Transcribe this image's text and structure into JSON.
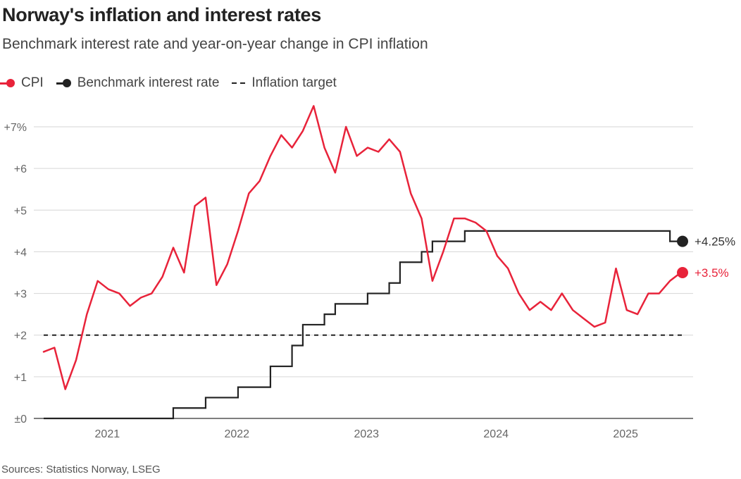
{
  "header": {
    "title": "Norway's inflation and interest rates",
    "subtitle": "Benchmark interest rate and year-on-year change in CPI inflation"
  },
  "legend": [
    {
      "label": "CPI",
      "kind": "dot-line",
      "color": "#e8233a"
    },
    {
      "label": "Benchmark interest rate",
      "kind": "dot-line",
      "color": "#222222"
    },
    {
      "label": "Inflation target",
      "kind": "dashed",
      "color": "#222222"
    }
  ],
  "footer": {
    "source": "Sources: Statistics Norway, LSEG"
  },
  "chart_data": {
    "type": "line",
    "title": "Norway's inflation and interest rates",
    "subtitle": "Benchmark interest rate and year-on-year change in CPI inflation",
    "x_unit": "month",
    "x_start": "2020-08",
    "xlabel": "",
    "ylabel": "",
    "ylim": [
      0,
      7.5
    ],
    "y_ticks": [
      0,
      1,
      2,
      3,
      4,
      5,
      6,
      7
    ],
    "y_tick_labels": [
      "±0",
      "+1",
      "+2",
      "+3",
      "+4",
      "+5",
      "+6",
      "+7%"
    ],
    "x_tick_labels": [
      "2021",
      "2022",
      "2023",
      "2024",
      "2025"
    ],
    "grid": true,
    "legend_position": "top-left",
    "series": [
      {
        "name": "CPI",
        "color": "#e8233a",
        "step": false,
        "end_label": "+3.5%",
        "values": [
          1.6,
          1.7,
          0.7,
          1.4,
          2.5,
          3.3,
          3.1,
          3.0,
          2.7,
          2.9,
          3.0,
          3.4,
          4.1,
          3.5,
          5.1,
          5.3,
          3.2,
          3.7,
          4.5,
          5.4,
          5.7,
          6.3,
          6.8,
          6.5,
          6.9,
          7.5,
          6.5,
          5.9,
          7.0,
          6.3,
          6.5,
          6.4,
          6.7,
          6.4,
          5.4,
          4.8,
          3.3,
          4.0,
          4.8,
          4.8,
          4.7,
          4.5,
          3.9,
          3.6,
          3.0,
          2.6,
          2.8,
          2.6,
          3.0,
          2.6,
          2.4,
          2.2,
          2.3,
          3.6,
          2.6,
          2.5,
          3.0,
          3.0,
          3.3,
          3.5
        ]
      },
      {
        "name": "Benchmark interest rate",
        "color": "#222222",
        "step": true,
        "end_label": "+4.25%",
        "values": [
          0,
          0,
          0,
          0,
          0,
          0,
          0,
          0,
          0,
          0,
          0,
          0,
          0.25,
          0.25,
          0.25,
          0.5,
          0.5,
          0.5,
          0.75,
          0.75,
          0.75,
          1.25,
          1.25,
          1.75,
          2.25,
          2.25,
          2.5,
          2.75,
          2.75,
          2.75,
          3.0,
          3.0,
          3.25,
          3.75,
          3.75,
          4.0,
          4.25,
          4.25,
          4.25,
          4.5,
          4.5,
          4.5,
          4.5,
          4.5,
          4.5,
          4.5,
          4.5,
          4.5,
          4.5,
          4.5,
          4.5,
          4.5,
          4.5,
          4.5,
          4.5,
          4.5,
          4.5,
          4.5,
          4.25,
          4.25,
          4.25
        ]
      },
      {
        "name": "Inflation target",
        "color": "#222222",
        "dashed": true,
        "values": [
          2,
          2
        ]
      }
    ]
  }
}
